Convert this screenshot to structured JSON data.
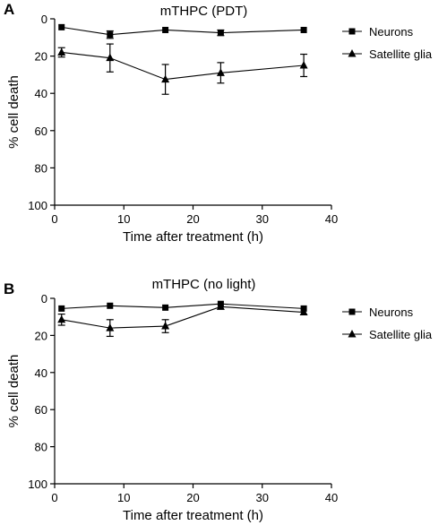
{
  "chart_data": [
    {
      "type": "line",
      "panel_label": "A",
      "title": "mTHPC (PDT)",
      "xlabel": "Time after treatment (h)",
      "ylabel": "% cell death",
      "xlim": [
        0,
        40
      ],
      "ylim": [
        0,
        100
      ],
      "y_inverted": true,
      "x_ticks": [
        0,
        10,
        20,
        30,
        40
      ],
      "y_ticks": [
        0,
        20,
        40,
        60,
        80,
        100
      ],
      "legend_position": "right",
      "series": [
        {
          "name": "Neurons",
          "marker": "square",
          "x": [
            1,
            8,
            16,
            24,
            36
          ],
          "y": [
            4.5,
            8.5,
            6,
            7.5,
            6
          ],
          "error": [
            0,
            2,
            0,
            1.5,
            0
          ]
        },
        {
          "name": "Satellite glia",
          "marker": "triangle",
          "x": [
            1,
            8,
            16,
            24,
            36
          ],
          "y": [
            18,
            21,
            32.5,
            29,
            25
          ],
          "error": [
            2.5,
            7.5,
            8,
            5.5,
            6
          ]
        }
      ]
    },
    {
      "type": "line",
      "panel_label": "B",
      "title": "mTHPC (no light)",
      "xlabel": "Time after treatment (h)",
      "ylabel": "% cell death",
      "xlim": [
        0,
        40
      ],
      "ylim": [
        0,
        100
      ],
      "y_inverted": true,
      "x_ticks": [
        0,
        10,
        20,
        30,
        40
      ],
      "y_ticks": [
        0,
        20,
        40,
        60,
        80,
        100
      ],
      "legend_position": "right",
      "series": [
        {
          "name": "Neurons",
          "marker": "square",
          "x": [
            1,
            8,
            16,
            24,
            36
          ],
          "y": [
            5.5,
            4,
            5,
            3,
            5.5
          ],
          "error": [
            0,
            0,
            0,
            0,
            0
          ]
        },
        {
          "name": "Satellite glia",
          "marker": "triangle",
          "x": [
            1,
            8,
            16,
            24,
            36
          ],
          "y": [
            11.5,
            16,
            15,
            4.5,
            7.5
          ],
          "error": [
            3,
            4.5,
            3.5,
            0,
            0
          ]
        }
      ]
    }
  ]
}
